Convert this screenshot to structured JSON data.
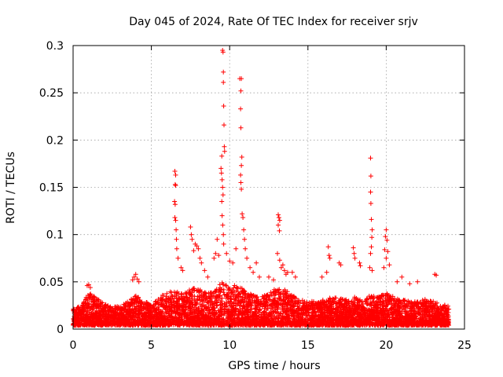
{
  "chart_data": {
    "type": "scatter",
    "title": "Day 045 of 2024, Rate Of TEC Index for receiver srjv",
    "xlabel": "GPS time / hours",
    "ylabel": "ROTI / TECUs",
    "xlim": [
      0,
      25
    ],
    "ylim": [
      0,
      0.3
    ],
    "x_ticks": [
      0,
      5,
      10,
      15,
      20,
      25
    ],
    "x_tick_labels": [
      "0",
      "5",
      "10",
      "15",
      "20",
      "25"
    ],
    "y_ticks": [
      0,
      0.05,
      0.1,
      0.15,
      0.2,
      0.25,
      0.3
    ],
    "y_tick_labels": [
      "0",
      "0.05",
      "0.1",
      "0.15",
      "0.2",
      "0.25",
      "0.3"
    ],
    "grid": true,
    "marker": "+",
    "series": [
      {
        "name": "ROTI",
        "color": "#ff0000",
        "baseline_profile": [
          {
            "x": 0.0,
            "y": 0.015
          },
          {
            "x": 0.5,
            "y": 0.018
          },
          {
            "x": 1.0,
            "y": 0.03
          },
          {
            "x": 1.5,
            "y": 0.025
          },
          {
            "x": 2.0,
            "y": 0.02
          },
          {
            "x": 2.5,
            "y": 0.018
          },
          {
            "x": 3.0,
            "y": 0.017
          },
          {
            "x": 3.5,
            "y": 0.022
          },
          {
            "x": 4.0,
            "y": 0.028
          },
          {
            "x": 4.5,
            "y": 0.022
          },
          {
            "x": 5.0,
            "y": 0.02
          },
          {
            "x": 5.5,
            "y": 0.026
          },
          {
            "x": 6.0,
            "y": 0.03
          },
          {
            "x": 6.5,
            "y": 0.032
          },
          {
            "x": 7.0,
            "y": 0.03
          },
          {
            "x": 7.5,
            "y": 0.034
          },
          {
            "x": 8.0,
            "y": 0.035
          },
          {
            "x": 8.5,
            "y": 0.03
          },
          {
            "x": 9.0,
            "y": 0.03
          },
          {
            "x": 9.5,
            "y": 0.04
          },
          {
            "x": 10.0,
            "y": 0.035
          },
          {
            "x": 10.5,
            "y": 0.038
          },
          {
            "x": 11.0,
            "y": 0.032
          },
          {
            "x": 11.5,
            "y": 0.028
          },
          {
            "x": 12.0,
            "y": 0.026
          },
          {
            "x": 12.5,
            "y": 0.03
          },
          {
            "x": 13.0,
            "y": 0.035
          },
          {
            "x": 13.5,
            "y": 0.033
          },
          {
            "x": 14.0,
            "y": 0.028
          },
          {
            "x": 14.5,
            "y": 0.024
          },
          {
            "x": 15.0,
            "y": 0.022
          },
          {
            "x": 15.5,
            "y": 0.022
          },
          {
            "x": 16.0,
            "y": 0.024
          },
          {
            "x": 16.5,
            "y": 0.026
          },
          {
            "x": 17.0,
            "y": 0.025
          },
          {
            "x": 17.5,
            "y": 0.024
          },
          {
            "x": 18.0,
            "y": 0.026
          },
          {
            "x": 18.5,
            "y": 0.024
          },
          {
            "x": 19.0,
            "y": 0.028
          },
          {
            "x": 19.5,
            "y": 0.026
          },
          {
            "x": 20.0,
            "y": 0.03
          },
          {
            "x": 20.5,
            "y": 0.026
          },
          {
            "x": 21.0,
            "y": 0.024
          },
          {
            "x": 21.5,
            "y": 0.022
          },
          {
            "x": 22.0,
            "y": 0.022
          },
          {
            "x": 22.5,
            "y": 0.024
          },
          {
            "x": 23.0,
            "y": 0.022
          },
          {
            "x": 23.5,
            "y": 0.02
          },
          {
            "x": 24.0,
            "y": 0.018
          }
        ],
        "points": [
          {
            "x": 9.55,
            "y": 0.295
          },
          {
            "x": 9.58,
            "y": 0.293
          },
          {
            "x": 9.6,
            "y": 0.272
          },
          {
            "x": 9.6,
            "y": 0.261
          },
          {
            "x": 9.62,
            "y": 0.236
          },
          {
            "x": 9.64,
            "y": 0.216
          },
          {
            "x": 9.66,
            "y": 0.193
          },
          {
            "x": 9.68,
            "y": 0.188
          },
          {
            "x": 9.5,
            "y": 0.183
          },
          {
            "x": 9.45,
            "y": 0.17
          },
          {
            "x": 9.48,
            "y": 0.165
          },
          {
            "x": 9.52,
            "y": 0.158
          },
          {
            "x": 9.55,
            "y": 0.15
          },
          {
            "x": 9.58,
            "y": 0.142
          },
          {
            "x": 9.5,
            "y": 0.135
          },
          {
            "x": 9.52,
            "y": 0.12
          },
          {
            "x": 9.56,
            "y": 0.11
          },
          {
            "x": 9.6,
            "y": 0.1
          },
          {
            "x": 9.62,
            "y": 0.09
          },
          {
            "x": 10.65,
            "y": 0.265
          },
          {
            "x": 10.75,
            "y": 0.265
          },
          {
            "x": 10.72,
            "y": 0.252
          },
          {
            "x": 10.7,
            "y": 0.233
          },
          {
            "x": 10.72,
            "y": 0.213
          },
          {
            "x": 10.78,
            "y": 0.182
          },
          {
            "x": 10.75,
            "y": 0.173
          },
          {
            "x": 10.7,
            "y": 0.163
          },
          {
            "x": 10.72,
            "y": 0.155
          },
          {
            "x": 10.75,
            "y": 0.148
          },
          {
            "x": 10.8,
            "y": 0.122
          },
          {
            "x": 10.85,
            "y": 0.118
          },
          {
            "x": 10.9,
            "y": 0.105
          },
          {
            "x": 10.95,
            "y": 0.095
          },
          {
            "x": 11.0,
            "y": 0.085
          },
          {
            "x": 6.5,
            "y": 0.167
          },
          {
            "x": 6.55,
            "y": 0.163
          },
          {
            "x": 6.52,
            "y": 0.153
          },
          {
            "x": 6.55,
            "y": 0.152
          },
          {
            "x": 6.48,
            "y": 0.135
          },
          {
            "x": 6.52,
            "y": 0.132
          },
          {
            "x": 6.5,
            "y": 0.118
          },
          {
            "x": 6.55,
            "y": 0.115
          },
          {
            "x": 6.58,
            "y": 0.105
          },
          {
            "x": 6.6,
            "y": 0.095
          },
          {
            "x": 6.62,
            "y": 0.085
          },
          {
            "x": 6.7,
            "y": 0.075
          },
          {
            "x": 19.0,
            "y": 0.181
          },
          {
            "x": 19.02,
            "y": 0.162
          },
          {
            "x": 19.0,
            "y": 0.145
          },
          {
            "x": 19.02,
            "y": 0.133
          },
          {
            "x": 19.05,
            "y": 0.116
          },
          {
            "x": 19.1,
            "y": 0.105
          },
          {
            "x": 19.08,
            "y": 0.097
          },
          {
            "x": 19.05,
            "y": 0.087
          },
          {
            "x": 19.0,
            "y": 0.08
          },
          {
            "x": 18.95,
            "y": 0.065
          },
          {
            "x": 19.1,
            "y": 0.062
          },
          {
            "x": 20.0,
            "y": 0.105
          },
          {
            "x": 19.95,
            "y": 0.098
          },
          {
            "x": 20.05,
            "y": 0.094
          },
          {
            "x": 19.9,
            "y": 0.084
          },
          {
            "x": 20.1,
            "y": 0.082
          },
          {
            "x": 20.0,
            "y": 0.075
          },
          {
            "x": 20.2,
            "y": 0.068
          },
          {
            "x": 19.85,
            "y": 0.065
          },
          {
            "x": 13.1,
            "y": 0.121
          },
          {
            "x": 13.15,
            "y": 0.118
          },
          {
            "x": 13.2,
            "y": 0.115
          },
          {
            "x": 13.1,
            "y": 0.11
          },
          {
            "x": 13.18,
            "y": 0.104
          },
          {
            "x": 13.05,
            "y": 0.08
          },
          {
            "x": 13.2,
            "y": 0.073
          },
          {
            "x": 13.3,
            "y": 0.065
          },
          {
            "x": 13.4,
            "y": 0.068
          },
          {
            "x": 13.5,
            "y": 0.062
          },
          {
            "x": 13.6,
            "y": 0.058
          },
          {
            "x": 13.7,
            "y": 0.06
          },
          {
            "x": 7.5,
            "y": 0.108
          },
          {
            "x": 7.55,
            "y": 0.1
          },
          {
            "x": 7.6,
            "y": 0.095
          },
          {
            "x": 7.8,
            "y": 0.09
          },
          {
            "x": 7.9,
            "y": 0.088
          },
          {
            "x": 8.0,
            "y": 0.085
          },
          {
            "x": 8.1,
            "y": 0.075
          },
          {
            "x": 8.2,
            "y": 0.07
          },
          {
            "x": 7.7,
            "y": 0.083
          },
          {
            "x": 6.9,
            "y": 0.065
          },
          {
            "x": 7.0,
            "y": 0.062
          },
          {
            "x": 8.4,
            "y": 0.062
          },
          {
            "x": 8.6,
            "y": 0.055
          },
          {
            "x": 9.0,
            "y": 0.075
          },
          {
            "x": 9.1,
            "y": 0.08
          },
          {
            "x": 9.2,
            "y": 0.095
          },
          {
            "x": 9.3,
            "y": 0.078
          },
          {
            "x": 9.8,
            "y": 0.08
          },
          {
            "x": 10.0,
            "y": 0.072
          },
          {
            "x": 10.2,
            "y": 0.07
          },
          {
            "x": 10.4,
            "y": 0.085
          },
          {
            "x": 11.1,
            "y": 0.075
          },
          {
            "x": 11.3,
            "y": 0.065
          },
          {
            "x": 11.5,
            "y": 0.06
          },
          {
            "x": 11.7,
            "y": 0.07
          },
          {
            "x": 11.9,
            "y": 0.055
          },
          {
            "x": 16.3,
            "y": 0.087
          },
          {
            "x": 16.35,
            "y": 0.078
          },
          {
            "x": 16.4,
            "y": 0.075
          },
          {
            "x": 16.2,
            "y": 0.06
          },
          {
            "x": 17.9,
            "y": 0.086
          },
          {
            "x": 17.95,
            "y": 0.08
          },
          {
            "x": 18.0,
            "y": 0.075
          },
          {
            "x": 18.3,
            "y": 0.07
          },
          {
            "x": 18.35,
            "y": 0.067
          },
          {
            "x": 17.0,
            "y": 0.07
          },
          {
            "x": 17.1,
            "y": 0.068
          },
          {
            "x": 15.9,
            "y": 0.055
          },
          {
            "x": 14.0,
            "y": 0.06
          },
          {
            "x": 14.2,
            "y": 0.055
          },
          {
            "x": 12.5,
            "y": 0.055
          },
          {
            "x": 12.8,
            "y": 0.052
          },
          {
            "x": 4.0,
            "y": 0.058
          },
          {
            "x": 3.9,
            "y": 0.055
          },
          {
            "x": 4.1,
            "y": 0.053
          },
          {
            "x": 3.8,
            "y": 0.052
          },
          {
            "x": 4.2,
            "y": 0.05
          },
          {
            "x": 0.9,
            "y": 0.046
          },
          {
            "x": 1.0,
            "y": 0.047
          },
          {
            "x": 1.1,
            "y": 0.044
          },
          {
            "x": 23.1,
            "y": 0.058
          },
          {
            "x": 23.2,
            "y": 0.057
          },
          {
            "x": 22.0,
            "y": 0.05
          },
          {
            "x": 21.5,
            "y": 0.048
          },
          {
            "x": 21.0,
            "y": 0.055
          },
          {
            "x": 20.7,
            "y": 0.05
          }
        ]
      }
    ]
  }
}
